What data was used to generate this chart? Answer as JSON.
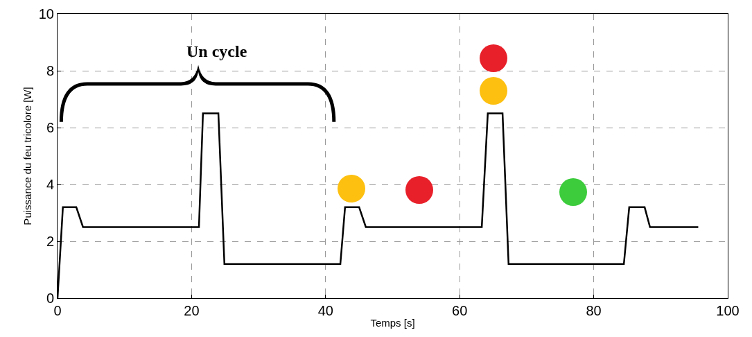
{
  "chart_data": {
    "type": "line",
    "xlabel": "Temps [s]",
    "ylabel": "Puissance du feu tricolore [W]",
    "x": [
      0,
      0.8,
      2.8,
      3.8,
      21.1,
      21.7,
      24.0,
      24.9,
      42.2,
      42.9,
      45.0,
      46.0,
      63.3,
      64.2,
      66.4,
      67.3,
      84.5,
      85.3,
      87.6,
      88.4,
      95.6
    ],
    "series": [
      {
        "color": "#000000",
        "values": [
          0,
          3.2,
          3.2,
          2.5,
          2.5,
          6.5,
          6.5,
          1.2,
          1.2,
          3.2,
          3.2,
          2.5,
          2.5,
          6.5,
          6.5,
          1.2,
          1.2,
          3.2,
          3.2,
          2.5,
          2.5
        ]
      }
    ],
    "xlim": [
      0,
      100
    ],
    "xticks": [
      0,
      20,
      40,
      60,
      80,
      100
    ],
    "ylim": [
      0,
      10
    ],
    "yticks": [
      0,
      2,
      4,
      6,
      8,
      10
    ],
    "grid": true,
    "marker": "none",
    "line_style": "solid",
    "annotations": [
      "Un cycle"
    ]
  }
}
